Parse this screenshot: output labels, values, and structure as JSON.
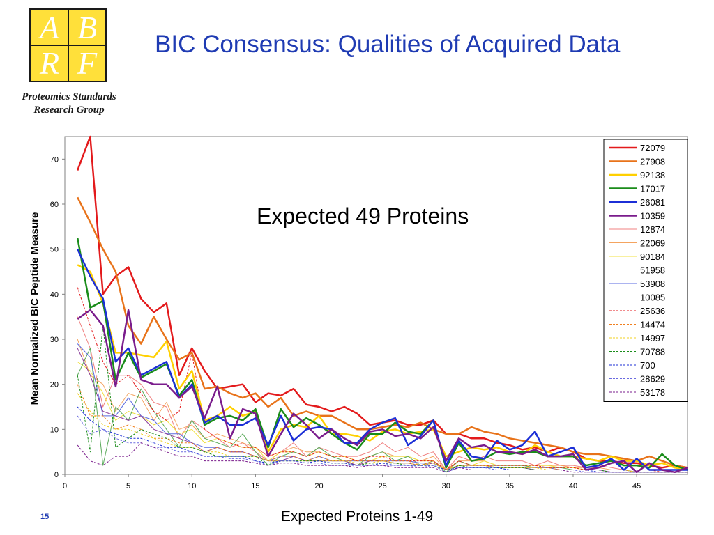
{
  "slide": {
    "title": "BIC Consensus: Qualities of Acquired Data",
    "logo_letters": [
      "A",
      "B",
      "R",
      "F"
    ],
    "org_line1": "Proteomics Standards",
    "org_line2": "Research Group",
    "page_number": "15",
    "accent": "#1f3bb3"
  },
  "chart_data": {
    "type": "line",
    "title": "",
    "annotation": "Expected 49 Proteins",
    "xlabel": "Expected Proteins 1-49",
    "ylabel": "Mean Normalized BIC Peptide Measure",
    "xlim": [
      0,
      49
    ],
    "ylim": [
      0,
      75
    ],
    "xticks": [
      0,
      5,
      10,
      15,
      20,
      25,
      30,
      35,
      40,
      45
    ],
    "yticks": [
      0,
      10,
      20,
      30,
      40,
      50,
      60,
      70
    ],
    "grid": false,
    "legend_position": "right",
    "x": [
      1,
      2,
      3,
      4,
      5,
      6,
      7,
      8,
      9,
      10,
      11,
      12,
      13,
      14,
      15,
      16,
      17,
      18,
      19,
      20,
      21,
      22,
      23,
      24,
      25,
      26,
      27,
      28,
      29,
      30,
      31,
      32,
      33,
      34,
      35,
      36,
      37,
      38,
      39,
      40,
      41,
      42,
      43,
      44,
      45,
      46,
      47,
      48,
      49
    ],
    "series": [
      {
        "name": "72079",
        "color": "#e31a1c",
        "style": "thick",
        "values": [
          67.5,
          75,
          40,
          44,
          46,
          39,
          36,
          38,
          22,
          28,
          23,
          19,
          19.5,
          20,
          16,
          18,
          17.5,
          19,
          15.5,
          15,
          14,
          15,
          13.5,
          11,
          11.5,
          12,
          11,
          11,
          12,
          9,
          9,
          8,
          8,
          7,
          6.5,
          5.5,
          6,
          5,
          6,
          5,
          3.5,
          3,
          3,
          2.5,
          2.5,
          2,
          1.5,
          2,
          1.5
        ]
      },
      {
        "name": "27908",
        "color": "#e8731a",
        "style": "thick",
        "values": [
          61.5,
          56,
          50,
          45,
          33,
          29,
          35,
          30,
          25.5,
          27,
          19,
          19.5,
          18,
          17,
          18,
          15,
          17,
          13,
          14,
          13,
          13,
          11.5,
          10,
          10,
          10.5,
          11,
          10.5,
          11.5,
          10,
          9,
          9,
          10.5,
          9.5,
          9,
          8,
          7.5,
          7,
          6.5,
          6,
          5,
          4.5,
          4.5,
          4,
          3.5,
          3,
          4,
          3,
          2,
          1.5
        ]
      },
      {
        "name": "92138",
        "color": "#ffd000",
        "style": "thick",
        "values": [
          46.5,
          45,
          38,
          27,
          27,
          26.5,
          26,
          29.5,
          19,
          23,
          12,
          13,
          15,
          13,
          14,
          5,
          10,
          11,
          10.5,
          13,
          9,
          9,
          8.5,
          7.5,
          9.5,
          10,
          9,
          9.5,
          10,
          4,
          5,
          6,
          5.5,
          6,
          5,
          4.5,
          6.5,
          5,
          4,
          4,
          3.5,
          3,
          4,
          3,
          3,
          2,
          2.5,
          1.5,
          1
        ]
      },
      {
        "name": "17017",
        "color": "#1a8c1a",
        "style": "thick",
        "values": [
          52.5,
          37,
          38.5,
          21,
          27,
          21.5,
          23,
          24.5,
          17.5,
          21,
          11,
          12.5,
          13,
          12,
          14.5,
          6,
          14.5,
          10.5,
          12.5,
          11,
          9,
          7,
          5.5,
          9,
          9,
          11.5,
          9.5,
          9,
          12,
          1.5,
          7,
          3,
          3.5,
          5,
          4.5,
          5,
          5,
          4,
          4,
          4,
          2,
          2.5,
          3,
          2,
          2,
          1.5,
          4.5,
          2,
          1
        ]
      },
      {
        "name": "26081",
        "color": "#1c2fd6",
        "style": "thick",
        "values": [
          50,
          44,
          39,
          25,
          28,
          22,
          23.5,
          25,
          17,
          20,
          11.5,
          13,
          11,
          11,
          12.5,
          6.5,
          13,
          7.5,
          10,
          10.5,
          10,
          7,
          7,
          10,
          11.5,
          12.5,
          6.5,
          8.5,
          12,
          2,
          7.5,
          4,
          3.5,
          7.5,
          5.5,
          6.5,
          9.5,
          4,
          5,
          6,
          1.5,
          2,
          3.5,
          1,
          3.5,
          1,
          1,
          1,
          1
        ]
      },
      {
        "name": "10359",
        "color": "#7a1c8c",
        "style": "thick",
        "values": [
          34.5,
          36.5,
          33,
          19.5,
          36.5,
          21,
          20,
          20,
          17,
          19.5,
          12.5,
          19.5,
          8,
          14.5,
          13.5,
          4,
          9,
          13.5,
          11,
          8,
          10,
          8,
          6.5,
          9.5,
          10,
          8.5,
          9,
          8,
          10.5,
          3,
          8,
          6,
          6.5,
          5,
          5,
          4.5,
          5.5,
          4,
          4,
          4.5,
          1,
          1.5,
          2.5,
          3,
          0.5,
          2.5,
          1,
          0.5,
          1.5
        ]
      },
      {
        "name": "12874",
        "color": "#f08080",
        "style": "thin",
        "values": [
          35,
          28,
          15,
          22,
          22,
          20,
          16,
          15,
          8,
          12,
          10,
          8,
          6,
          7,
          5,
          3,
          5,
          7,
          4,
          6,
          5,
          4,
          4,
          5,
          7,
          5,
          6,
          4,
          5,
          1,
          4,
          3,
          4,
          3,
          3,
          3,
          2,
          3,
          2,
          2,
          1.5,
          2,
          1.5,
          1,
          1,
          1,
          1,
          0.5,
          0.5
        ]
      },
      {
        "name": "22069",
        "color": "#f4a460",
        "style": "thin",
        "values": [
          30,
          22,
          20,
          14,
          18,
          17,
          12,
          16,
          10,
          11,
          8,
          9,
          8,
          7,
          6,
          4,
          5,
          6,
          5,
          5,
          4,
          4,
          3,
          4,
          5,
          4,
          4,
          3,
          4,
          1,
          3,
          3,
          3,
          2,
          2,
          2,
          2,
          2,
          2,
          1.5,
          1.5,
          1.5,
          1,
          1,
          1,
          1,
          1,
          0.5,
          0.5
        ]
      },
      {
        "name": "90184",
        "color": "#f0e040",
        "style": "thin",
        "values": [
          25,
          23,
          18,
          12,
          14,
          13,
          11,
          12,
          9,
          10,
          7,
          8,
          7,
          6,
          6,
          3,
          5,
          5,
          4,
          5,
          4,
          4,
          3,
          3,
          4,
          4,
          4,
          3,
          3,
          1,
          3,
          2,
          3,
          2,
          2,
          2,
          2,
          2,
          1.5,
          1.5,
          1,
          1,
          1,
          1,
          1,
          1,
          1,
          0.5,
          0.5
        ]
      },
      {
        "name": "51958",
        "color": "#5aaa5a",
        "style": "thin",
        "values": [
          22,
          28,
          2,
          15,
          12,
          19,
          14,
          10,
          6,
          12,
          8,
          7,
          6,
          9,
          5,
          2,
          4,
          5,
          4,
          6,
          4,
          3,
          2,
          4,
          5,
          3,
          4,
          2,
          3,
          0.5,
          3,
          2,
          2,
          2,
          2,
          2,
          1.5,
          1.5,
          1.5,
          1,
          1,
          1,
          1,
          1,
          0.5,
          0.5,
          0.5,
          0.5,
          0.5
        ]
      },
      {
        "name": "53908",
        "color": "#5a6ae0",
        "style": "thin",
        "values": [
          29,
          26,
          13,
          13,
          17,
          13,
          12,
          9,
          9,
          7,
          6,
          6,
          5,
          5,
          4,
          3,
          4,
          4,
          3,
          4,
          3,
          3,
          3,
          3,
          3,
          3,
          3,
          2.5,
          2.5,
          1,
          2,
          2,
          2,
          1.5,
          1.5,
          1.5,
          1.5,
          1.5,
          1,
          1,
          1,
          1,
          1,
          1,
          0.5,
          0.5,
          0.5,
          0.5,
          0.5
        ]
      },
      {
        "name": "10085",
        "color": "#8a3a9a",
        "style": "thin",
        "values": [
          28,
          22,
          14,
          13,
          12,
          13,
          10,
          9,
          8,
          7,
          5,
          6,
          5,
          5,
          4,
          3,
          3,
          4,
          3,
          3,
          3,
          3,
          2,
          3,
          3,
          2.5,
          2.5,
          2,
          2.5,
          1,
          2,
          2,
          2,
          1.5,
          1.5,
          1.5,
          1,
          1,
          1,
          1,
          1,
          1,
          0.5,
          0.5,
          0.5,
          0.5,
          0.5,
          0.5,
          0.5
        ]
      },
      {
        "name": "25636",
        "color": "#e31a1c",
        "style": "dashed",
        "values": [
          41.5,
          33,
          25,
          20,
          22,
          18,
          14,
          12,
          14,
          27,
          10,
          8,
          7,
          6,
          6,
          4,
          5,
          5,
          4,
          5,
          4,
          4,
          3,
          4,
          4,
          3,
          3,
          3,
          3,
          1,
          3,
          2,
          2,
          2,
          2,
          2,
          2,
          1.5,
          1.5,
          1.5,
          1,
          1,
          1,
          1,
          1,
          1,
          0.5,
          0.5,
          0.5
        ]
      },
      {
        "name": "14474",
        "color": "#f08020",
        "style": "dashed",
        "values": [
          20,
          13,
          13,
          10,
          11,
          10,
          8,
          8,
          7,
          7,
          5,
          6,
          5,
          5,
          4,
          3,
          4,
          4,
          3,
          4,
          3,
          3,
          3,
          3,
          3,
          3,
          3,
          2,
          3,
          1,
          2,
          2,
          2,
          1.5,
          1.5,
          1.5,
          1.5,
          1.5,
          1,
          1,
          1,
          1,
          1,
          1,
          0.5,
          0.5,
          0.5,
          0.5,
          0.5
        ]
      },
      {
        "name": "14997",
        "color": "#f0d020",
        "style": "dashed",
        "values": [
          18,
          14,
          11,
          10,
          10,
          9,
          8,
          7,
          6,
          6,
          5,
          5,
          4,
          4,
          4,
          3,
          3,
          3,
          3,
          3,
          3,
          3,
          2.5,
          2.5,
          3,
          2.5,
          2.5,
          2,
          2.5,
          1,
          2,
          2,
          2,
          1.5,
          1.5,
          1.5,
          1.5,
          1,
          1,
          1,
          1,
          1,
          1,
          1,
          0.5,
          0.5,
          0.5,
          0.5,
          0.5
        ]
      },
      {
        "name": "70788",
        "color": "#1a8c1a",
        "style": "dashed",
        "values": [
          22,
          5,
          33,
          6,
          8,
          10,
          9,
          8,
          6,
          6,
          5,
          4,
          4,
          4,
          4,
          2,
          3,
          3,
          3,
          3,
          2.5,
          2.5,
          2,
          2.5,
          2.5,
          2.5,
          2,
          2,
          2,
          0.5,
          2,
          1.5,
          1.5,
          1.5,
          1.5,
          1.5,
          1,
          1,
          1,
          1,
          1,
          1,
          0.5,
          0.5,
          0.5,
          0.5,
          0.5,
          0.5,
          0.5
        ]
      },
      {
        "name": "700",
        "color": "#1c2fd6",
        "style": "dashed",
        "values": [
          15,
          12,
          10,
          9,
          8,
          8,
          7,
          6,
          6,
          5,
          4,
          4,
          4,
          4,
          3,
          2.5,
          3,
          3,
          2.5,
          3,
          2.5,
          2.5,
          2,
          2,
          2.5,
          2,
          2,
          2,
          2,
          1,
          1.5,
          1.5,
          1.5,
          1.5,
          1,
          1,
          1,
          1,
          1,
          1,
          1,
          0.5,
          0.5,
          0.5,
          0.5,
          0.5,
          0.5,
          0.5,
          0.5
        ]
      },
      {
        "name": "28629",
        "color": "#6a6ae0",
        "style": "dashed",
        "values": [
          13,
          9,
          10,
          8,
          7,
          7,
          6,
          6,
          5,
          5,
          4,
          4,
          3.5,
          3.5,
          3,
          2,
          3,
          3,
          2.5,
          2.5,
          2,
          2,
          2,
          2,
          2,
          2,
          2,
          1.5,
          2,
          0.5,
          1.5,
          1.5,
          1.5,
          1,
          1,
          1,
          1,
          1,
          1,
          1,
          0.5,
          0.5,
          0.5,
          0.5,
          0.5,
          0.5,
          0.5,
          0.5,
          0.5
        ]
      },
      {
        "name": "53178",
        "color": "#7a1c8c",
        "style": "dashed",
        "values": [
          6.5,
          3,
          2,
          4,
          4,
          7,
          6,
          5,
          4,
          4,
          3,
          3,
          3,
          3,
          2.5,
          2,
          2.5,
          2.5,
          2,
          2,
          2,
          2,
          1.5,
          2,
          2,
          1.5,
          1.5,
          1.5,
          1.5,
          0.5,
          1.5,
          1,
          1,
          1,
          1,
          1,
          1,
          1,
          1,
          0.5,
          0.5,
          0.5,
          0.5,
          0.5,
          0.5,
          0.5,
          0.5,
          0.5,
          0.5
        ]
      }
    ]
  }
}
